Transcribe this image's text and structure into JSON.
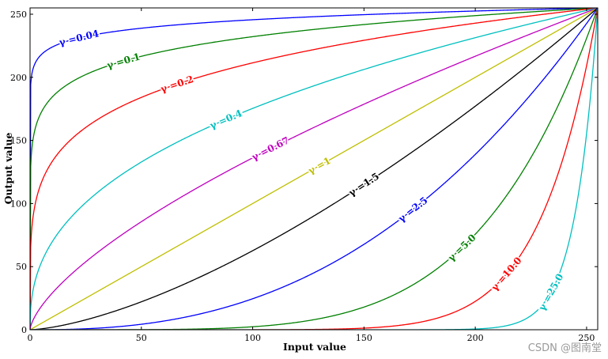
{
  "watermark": "CSDN @图南堂",
  "chart_data": {
    "type": "line",
    "title": "",
    "xlabel": "Input value",
    "ylabel": "Output value",
    "xlim": [
      0,
      255
    ],
    "ylim": [
      0,
      255
    ],
    "x_ticks": [
      0,
      50,
      100,
      150,
      200,
      250
    ],
    "y_ticks": [
      0,
      50,
      100,
      150,
      200,
      250
    ],
    "grid": false,
    "legend": "none",
    "function": "output = 255 * (input / 255) ^ gamma",
    "series": [
      {
        "label": "γ =0.04",
        "gamma": 0.04,
        "color": "#0000ff",
        "label_x": 22
      },
      {
        "label": "γ =0.1",
        "gamma": 0.1,
        "color": "#008000",
        "label_x": 42
      },
      {
        "label": "γ =0.2",
        "gamma": 0.2,
        "color": "#ff0000",
        "label_x": 66
      },
      {
        "label": "γ =0.4",
        "gamma": 0.4,
        "color": "#00bfbf",
        "label_x": 88
      },
      {
        "label": "γ =0.67",
        "gamma": 0.67,
        "color": "#bf00bf",
        "label_x": 108
      },
      {
        "label": "γ =1",
        "gamma": 1.0,
        "color": "#bfbf00",
        "label_x": 130
      },
      {
        "label": "γ =1.5",
        "gamma": 1.5,
        "color": "#000000",
        "label_x": 150
      },
      {
        "label": "γ =2.5",
        "gamma": 2.5,
        "color": "#0000ff",
        "label_x": 172
      },
      {
        "label": "γ =5.0",
        "gamma": 5.0,
        "color": "#008000",
        "label_x": 194
      },
      {
        "label": "γ =10.0",
        "gamma": 10.0,
        "color": "#ff0000",
        "label_x": 214
      },
      {
        "label": "γ =25.0",
        "gamma": 25.0,
        "color": "#00bfbf",
        "label_x": 234
      }
    ]
  }
}
